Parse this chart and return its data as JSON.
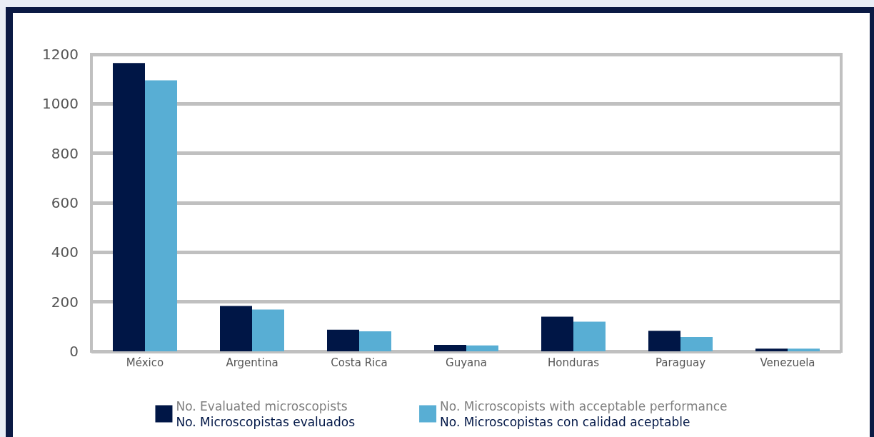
{
  "chart_data": {
    "type": "bar",
    "categories": [
      "México",
      "Argentina",
      "Costa Rica",
      "Guyana",
      "Honduras",
      "Paraguay",
      "Venezuela"
    ],
    "series": [
      {
        "name": "No. Evaluated microscopists\nNo. Microscopistas evaluados",
        "color": "#001646",
        "values": [
          1165,
          183,
          87,
          26,
          140,
          83,
          11
        ]
      },
      {
        "name": "No. Microscopists with acceptable performance\nNo. Microscopistas con calidad aceptable",
        "color": "#58aed4",
        "values": [
          1095,
          169,
          81,
          24,
          120,
          58,
          11
        ]
      }
    ],
    "ylim": [
      0,
      1200
    ],
    "yticks": [
      0,
      200,
      400,
      600,
      800,
      1000,
      1200
    ],
    "grid": "y",
    "legend": "bottom"
  }
}
